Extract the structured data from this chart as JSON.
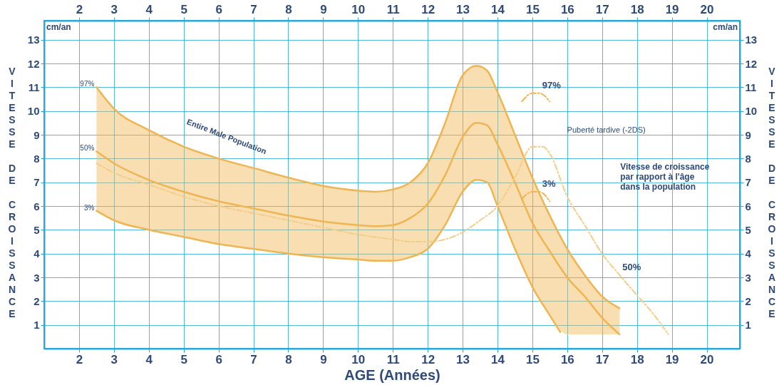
{
  "chart_data": {
    "type": "line",
    "xlabel": "AGE (Années)",
    "ylabel": "VITESSE DE CROISSANCE",
    "y2label": "VITESSE DE CROISSANCE",
    "x": [
      2.5,
      3,
      4,
      5,
      6,
      7,
      8,
      9,
      10,
      10.5,
      11,
      11.5,
      12,
      12.5,
      13,
      13.4,
      13.7,
      14,
      14.5,
      15,
      15.5,
      16,
      16.5,
      17,
      17.5
    ],
    "series": [
      {
        "name": "97%",
        "color": "#efb552",
        "values": [
          11.0,
          10.1,
          9.2,
          8.5,
          8.0,
          7.6,
          7.2,
          6.85,
          6.65,
          6.6,
          6.7,
          7.0,
          7.8,
          9.5,
          11.5,
          11.9,
          11.7,
          10.8,
          9.0,
          7.2,
          5.6,
          4.2,
          3.1,
          2.2,
          1.7
        ]
      },
      {
        "name": "50%",
        "color": "#efb552",
        "values": [
          8.3,
          7.8,
          7.1,
          6.6,
          6.2,
          5.9,
          5.6,
          5.35,
          5.2,
          5.15,
          5.2,
          5.5,
          6.1,
          7.3,
          8.9,
          9.5,
          9.4,
          8.6,
          7.0,
          5.3,
          4.1,
          3.0,
          2.2,
          1.3,
          0.6
        ],
        "upper": [
          11.0,
          10.1,
          9.2,
          8.5,
          8.0,
          7.6,
          7.2,
          6.85,
          6.65,
          6.6,
          6.7,
          7.0,
          7.8,
          9.5,
          11.5,
          11.9,
          11.7,
          10.8,
          9.0,
          7.2,
          5.6,
          4.2,
          3.1,
          2.2,
          1.7
        ],
        "lower": [
          5.8,
          5.4,
          5.0,
          4.7,
          4.4,
          4.2,
          4.0,
          3.85,
          3.75,
          3.7,
          3.7,
          3.85,
          4.2,
          5.2,
          6.6,
          7.1,
          7.0,
          6.0,
          4.2,
          2.6,
          1.4,
          0.6,
          0.6,
          0.6,
          0.6
        ]
      },
      {
        "name": "3%",
        "color": "#efb552",
        "x": [
          2.5,
          3,
          4,
          5,
          6,
          7,
          8,
          9,
          10,
          10.5,
          11,
          11.5,
          12,
          12.5,
          13,
          13.4,
          13.7,
          14,
          14.5,
          15,
          15.5,
          15.8
        ],
        "values": [
          5.8,
          5.4,
          5.0,
          4.7,
          4.4,
          4.2,
          4.0,
          3.85,
          3.75,
          3.7,
          3.7,
          3.85,
          4.2,
          5.2,
          6.6,
          7.1,
          7.0,
          6.0,
          4.2,
          2.6,
          1.4,
          0.7
        ]
      },
      {
        "name": "50%",
        "color": "#f3cd8a",
        "line_style": "dashed",
        "x": [
          2.5,
          3,
          4,
          5,
          6,
          7,
          8,
          9,
          10,
          11,
          11.5,
          12,
          12.5,
          13,
          13.5,
          14,
          14.5,
          15,
          15.3,
          15.5,
          16,
          16.5,
          17,
          17.5,
          18,
          18.5,
          18.9
        ],
        "values": [
          7.8,
          7.4,
          6.9,
          6.4,
          6.0,
          5.7,
          5.4,
          5.1,
          4.8,
          4.6,
          4.5,
          4.5,
          4.6,
          4.9,
          5.4,
          6.0,
          7.2,
          8.5,
          8.5,
          8.2,
          6.4,
          5.2,
          4.0,
          3.1,
          2.25,
          1.4,
          0.6
        ]
      },
      {
        "name": "97%",
        "color": "#efb552",
        "line_style": "dashed",
        "x": [
          14.7,
          15,
          15.2,
          15.5
        ],
        "values": [
          10.4,
          10.75,
          10.75,
          10.4
        ]
      },
      {
        "name": "3%",
        "color": "#efb552",
        "line_style": "dashed",
        "x": [
          14.7,
          15,
          15.2,
          15.5
        ],
        "values": [
          6.3,
          6.6,
          6.6,
          6.2
        ]
      }
    ],
    "xlim": [
      1,
      20.95
    ],
    "xticks": [
      2,
      3,
      4,
      5,
      6,
      7,
      8,
      9,
      10,
      11,
      12,
      13,
      14,
      15,
      16,
      17,
      18,
      19,
      20
    ],
    "x2lim": [
      1,
      20.95
    ],
    "x2ticks": [
      2,
      3,
      4,
      5,
      6,
      7,
      8,
      9,
      10,
      11,
      12,
      13,
      14,
      15,
      16,
      17,
      18,
      19,
      20
    ],
    "ylim": [
      0,
      13.8
    ],
    "yticks": [
      1,
      2,
      3,
      4,
      5,
      6,
      7,
      8,
      9,
      10,
      11,
      12,
      13
    ],
    "y2lim": [
      0,
      13.8
    ],
    "y2ticks": [
      1,
      2,
      3,
      4,
      5,
      6,
      7,
      8,
      9,
      10,
      11,
      12,
      13
    ],
    "grid": true,
    "annotations": [
      "cm/an",
      "cm/an",
      "Entire Male Population",
      "Puberté tardive (-2DS)",
      "Vitesse de croissance\npar rapport à l'âge\ndans la population"
    ]
  }
}
